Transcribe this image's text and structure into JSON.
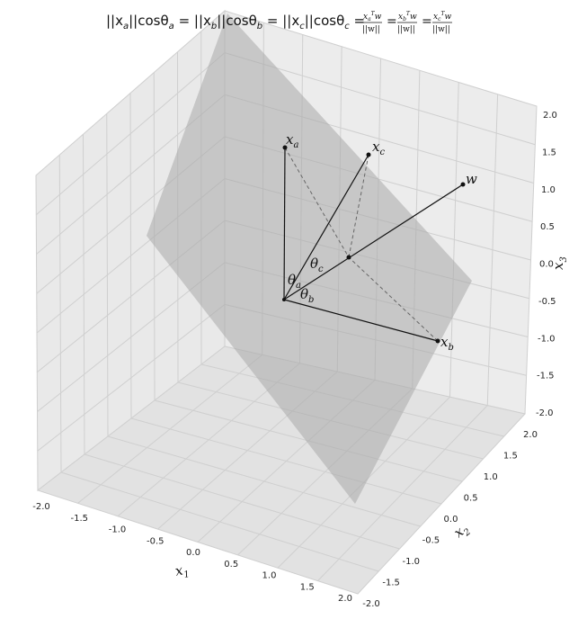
{
  "chart_data": {
    "type": "3d-vector-diagram",
    "title": "||x_a||cosθ_a = ||x_b||cosθ_b = ||x_c||cosθ_c = x_a^T w/||w|| = x_b^T w/||w|| = x_c^T w/||w||",
    "title_parts": {
      "eq1": "||x",
      "sub_a": "a",
      "mid_a": "||cosθ",
      "sub_a2": "a",
      "eq2": " = ||x",
      "sub_b": "b",
      "mid_b": "||cosθ",
      "sub_b2": "b",
      "eq3": " = ||x",
      "sub_c": "c",
      "mid_c": "||cosθ",
      "sub_c2": "c",
      "frac_a_num": "x",
      "frac_a_sub": "a",
      "frac_sup": "T",
      "frac_w": "w",
      "frac_den": "||w||",
      "frac_b_sub": "b",
      "frac_c_sub": "c"
    },
    "xlabel": "x",
    "xlabel_sub": "1",
    "ylabel": "x",
    "ylabel_sub": "2",
    "zlabel": "x",
    "zlabel_sub": "3",
    "xlim": [
      -2.0,
      2.0
    ],
    "ylim": [
      -2.0,
      2.0
    ],
    "zlim": [
      -2.0,
      2.0
    ],
    "x_ticks": [
      "-2.0",
      "-1.5",
      "-1.0",
      "-0.5",
      "0.0",
      "0.5",
      "1.0",
      "1.5",
      "2.0"
    ],
    "y_ticks": [
      "-2.0",
      "-1.5",
      "-1.0",
      "-0.5",
      "0.0",
      "0.5",
      "1.0",
      "1.5",
      "2.0"
    ],
    "z_ticks": [
      "-2.0",
      "-1.5",
      "-1.0",
      "-0.5",
      "0.0",
      "0.5",
      "1.0",
      "1.5",
      "2.0"
    ],
    "grid": true,
    "vectors": [
      {
        "name": "x",
        "sub": "a",
        "end": [
          0,
          -0.8,
          1.6
        ]
      },
      {
        "name": "x",
        "sub": "b",
        "end": [
          0.8,
          0.1,
          -1.0
        ]
      },
      {
        "name": "x",
        "sub": "c",
        "end": [
          0.2,
          0.3,
          1.6
        ]
      },
      {
        "name": "w",
        "sub": "",
        "end": [
          0.7,
          1.2,
          1.2
        ]
      }
    ],
    "angle_labels": [
      {
        "name": "θ",
        "sub": "a"
      },
      {
        "name": "θ",
        "sub": "b"
      },
      {
        "name": "θ",
        "sub": "c"
      }
    ],
    "plane": {
      "shown": true,
      "color": "#aaaaaa",
      "opacity": 0.55
    },
    "projection_point": "intersection of projections on w"
  }
}
